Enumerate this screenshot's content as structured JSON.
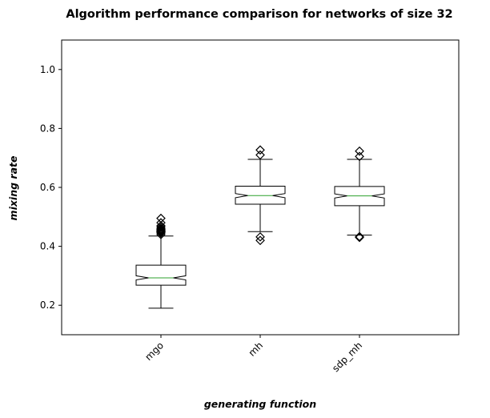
{
  "chart_data": {
    "type": "box",
    "title": "Algorithm performance comparison for networks of size 32",
    "xlabel": "generating function",
    "ylabel": "mixing rate",
    "ylim": [
      0.1,
      1.1
    ],
    "yticks": [
      "0.2",
      "0.4",
      "0.6",
      "0.8",
      "1.0"
    ],
    "categories": [
      "mgo",
      "mh",
      "sdp_mh"
    ],
    "notched": true,
    "boxes": [
      {
        "name": "mgo",
        "whisker_low": 0.19,
        "q1": 0.268,
        "median": 0.293,
        "q3": 0.336,
        "whisker_high": 0.435,
        "notch_low": 0.286,
        "notch_high": 0.3,
        "outliers": [
          0.44,
          0.445,
          0.448,
          0.45,
          0.452,
          0.455,
          0.458,
          0.46,
          0.465,
          0.47,
          0.48,
          0.495
        ]
      },
      {
        "name": "mh",
        "whisker_low": 0.45,
        "q1": 0.543,
        "median": 0.572,
        "q3": 0.604,
        "whisker_high": 0.695,
        "notch_low": 0.565,
        "notch_high": 0.579,
        "outliers": [
          0.42,
          0.432,
          0.71,
          0.727
        ]
      },
      {
        "name": "sdp_mh",
        "whisker_low": 0.438,
        "q1": 0.538,
        "median": 0.571,
        "q3": 0.603,
        "whisker_high": 0.695,
        "notch_low": 0.564,
        "notch_high": 0.578,
        "outliers": [
          0.43,
          0.433,
          0.705,
          0.723
        ]
      }
    ],
    "colors": {
      "box": "#000000",
      "median": "#2ca02c",
      "axis": "#000000"
    },
    "grid": false,
    "legend": "none"
  }
}
